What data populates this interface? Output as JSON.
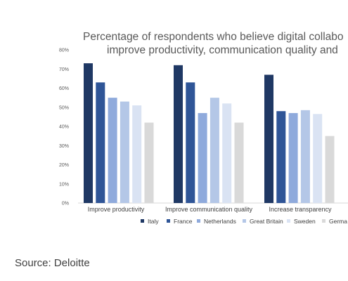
{
  "chart_data": {
    "type": "bar",
    "title_lines": [
      "Percentage of respondents who believe digital collabo",
      "improve productivity, communication quality and"
    ],
    "categories": [
      "Improve productivity",
      "Improve communication quality",
      "Increase transparency"
    ],
    "series": [
      {
        "name": "Italy",
        "color": "#1f3864",
        "values": [
          73,
          72,
          67
        ]
      },
      {
        "name": "France",
        "color": "#2f5597",
        "values": [
          63,
          63,
          48
        ]
      },
      {
        "name": "Netherlands",
        "color": "#8faadc",
        "values": [
          55,
          47,
          47
        ]
      },
      {
        "name": "Great Britain",
        "color": "#b4c7e7",
        "values": [
          53,
          55,
          48.5
        ]
      },
      {
        "name": "Sweden",
        "color": "#dae3f3",
        "values": [
          51,
          52,
          46.5
        ]
      },
      {
        "name": "Germa",
        "color": "#d9d9d9",
        "values": [
          42,
          42,
          35
        ]
      }
    ],
    "y_ticks": [
      "0%",
      "10%",
      "20%",
      "30%",
      "40%",
      "50%",
      "60%",
      "70%",
      "80%"
    ],
    "ylim": [
      0,
      80
    ],
    "grid": false,
    "legend_position": "bottom"
  },
  "source_text": "Source: Deloitte"
}
